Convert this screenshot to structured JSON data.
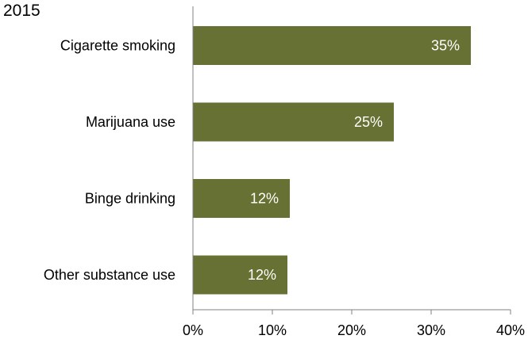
{
  "chart_data": {
    "type": "bar",
    "orientation": "horizontal",
    "title": "2015",
    "categories": [
      "Cigarette smoking",
      "Marijuana use",
      "Binge drinking",
      "Other substance use"
    ],
    "values": [
      35,
      25.3,
      12.2,
      11.9
    ],
    "data_labels": [
      "35%",
      "25%",
      "12%",
      "12%"
    ],
    "xlim": [
      0,
      40
    ],
    "x_ticks": [
      0,
      10,
      20,
      30,
      40
    ],
    "x_tick_labels": [
      "0%",
      "10%",
      "20%",
      "30%",
      "40%"
    ],
    "xlabel": "",
    "ylabel": "",
    "grid": false,
    "legend": "none",
    "bar_color": "#667133",
    "label_color": "#ffffff"
  }
}
